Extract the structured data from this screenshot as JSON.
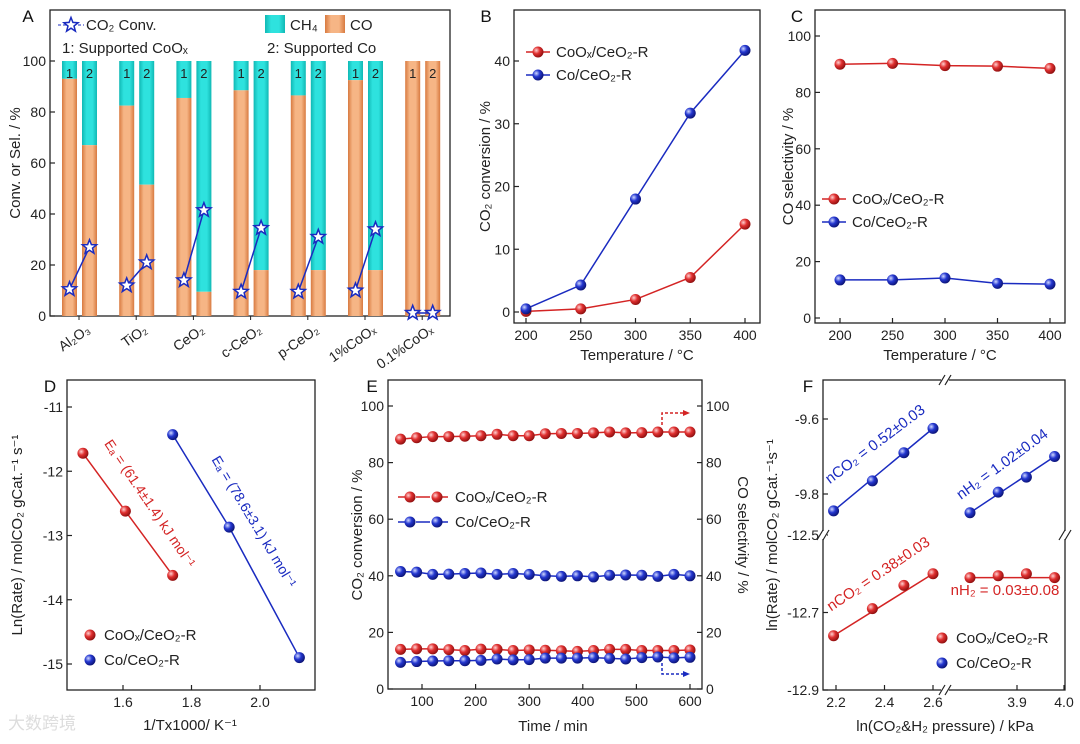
{
  "watermark": "大数跨境",
  "colors": {
    "red": "#d42424",
    "blue": "#1a2bc0",
    "co_bar": "#f2a46e",
    "ch4_bar": "#1ed2cf",
    "axis": "#222222"
  },
  "chart_data": [
    {
      "panel": "A",
      "type": "bar",
      "categories": [
        "Al₂O₃",
        "TiO₂",
        "CeO₂",
        "c-CeO₂",
        "p-CeO₂",
        "1%CoOₓ",
        "0.1%CoOₓ"
      ],
      "bar_labels": [
        "1",
        "2"
      ],
      "ylabel": "Conv. or Sel. / %",
      "ylim": [
        0,
        120
      ],
      "yticks": [
        "0",
        "20",
        "40",
        "60",
        "80",
        "100"
      ],
      "legend": {
        "conv": "CO₂ Conv.",
        "ch4": "CH₄",
        "co": "CO",
        "note1": "1: Supported CoOₓ",
        "note2": "2: Supported Co"
      },
      "co_selectivity": {
        "1": [
          93,
          82.5,
          85.5,
          88.5,
          86.5,
          92.5,
          100
        ],
        "2": [
          67,
          51.5,
          9.5,
          18,
          18,
          18,
          100
        ]
      },
      "co2_conversion": {
        "1": [
          10.5,
          12,
          14,
          9.5,
          9.5,
          10,
          1.2
        ],
        "2": [
          27,
          21,
          41.5,
          34.5,
          31,
          34,
          1.2
        ]
      }
    },
    {
      "panel": "B",
      "type": "line",
      "xlabel": "Temperature / °C",
      "ylabel": "CO₂ conversion / %",
      "xlim": [
        190,
        410
      ],
      "ylim": [
        -1,
        44.8
      ],
      "xticks": [
        "200",
        "250",
        "300",
        "350",
        "400"
      ],
      "yticks": [
        "0",
        "10",
        "20",
        "30",
        "40"
      ],
      "x": [
        200,
        250,
        300,
        350,
        400
      ],
      "series": [
        {
          "name": "CoOₓ/CeO₂-R",
          "color": "#d42424",
          "values": [
            0.1,
            0.5,
            2,
            5.5,
            14
          ]
        },
        {
          "name": "Co/CeO₂-R",
          "color": "#1a2bc0",
          "values": [
            0.5,
            4.3,
            18,
            31.7,
            41.7
          ]
        }
      ]
    },
    {
      "panel": "C",
      "type": "line",
      "xlabel": "Temperature / °C",
      "ylabel": "CO selectivity / %",
      "xlim": [
        190,
        410
      ],
      "ylim": [
        -2,
        109
      ],
      "xticks": [
        "200",
        "250",
        "300",
        "350",
        "400"
      ],
      "yticks": [
        "0",
        "20",
        "40",
        "60",
        "80",
        "100"
      ],
      "x": [
        200,
        250,
        300,
        350,
        400
      ],
      "series": [
        {
          "name": "CoOₓ/CeO₂-R",
          "color": "#d42424",
          "values": [
            90,
            90.3,
            89.5,
            89.3,
            88.5
          ]
        },
        {
          "name": "Co/CeO₂-R",
          "color": "#1a2bc0",
          "values": [
            13.5,
            13.5,
            14.2,
            12.3,
            12
          ]
        }
      ]
    },
    {
      "panel": "D",
      "type": "scatter",
      "xlabel": "1/Tx1000/ K⁻¹",
      "ylabel": "Ln(Rate) / molCO₂ gCat.⁻¹ s⁻¹",
      "xlim": [
        1.43,
        2.15
      ],
      "ylim": [
        -15.4,
        -10.6
      ],
      "xticks": [
        "1.6",
        "1.8",
        "2.0"
      ],
      "yticks": [
        "-11",
        "-12",
        "-13",
        "-14",
        "-15"
      ],
      "series": [
        {
          "name": "CoOₓ/CeO₂-R",
          "color": "#d42424",
          "x": [
            1.483,
            1.607,
            1.745
          ],
          "values": [
            -11.72,
            -12.62,
            -13.62
          ],
          "annotation": "Eₐ = (61.4±1.4) kJ mol⁻¹"
        },
        {
          "name": "Co/CeO₂-R",
          "color": "#1a2bc0",
          "x": [
            1.745,
            1.91,
            2.115
          ],
          "values": [
            -11.43,
            -12.87,
            -14.9
          ],
          "annotation": "Eₐ = (78.6±3.1) kJ mol⁻¹"
        }
      ]
    },
    {
      "panel": "E",
      "type": "line",
      "xlabel": "Time / min",
      "ylabel": "CO₂ conversion / %",
      "ylabel_right": "CO selectivity / %",
      "xlim": [
        45,
        615
      ],
      "ylim": [
        0,
        110
      ],
      "xticks": [
        "100",
        "200",
        "300",
        "400",
        "500",
        "600"
      ],
      "yticks": [
        "0",
        "20",
        "40",
        "60",
        "80",
        "100"
      ],
      "x": [
        60,
        90,
        120,
        150,
        180,
        210,
        240,
        270,
        300,
        330,
        360,
        390,
        420,
        450,
        480,
        510,
        540,
        570,
        600
      ],
      "legend": [
        "CoOₓ/CeO₂-R",
        "Co/CeO₂-R"
      ],
      "series": [
        {
          "name": "CoOₓ/CeO₂-R CO selectivity",
          "axis": "right",
          "color": "#d42424",
          "values": [
            88.3,
            88.8,
            89.2,
            89.2,
            89.3,
            89.5,
            90,
            89.5,
            89.5,
            90.2,
            90.3,
            90.3,
            90.5,
            90.8,
            90.5,
            90.6,
            90.8,
            90.8,
            90.8
          ]
        },
        {
          "name": "Co/CeO₂-R CO selectivity",
          "axis": "right",
          "color": "#1a2bc0",
          "values": [
            41.5,
            41.3,
            40.5,
            40.6,
            40.8,
            41,
            40.5,
            40.8,
            40.5,
            40,
            39.8,
            40,
            39.6,
            40.2,
            40.3,
            40.2,
            39.8,
            40.5,
            40
          ]
        },
        {
          "name": "CoOₓ/CeO₂-R CO₂ conversion",
          "axis": "left",
          "color": "#d42424",
          "values": [
            14,
            14.2,
            14.2,
            13.9,
            13.6,
            14.1,
            14,
            13.6,
            13.8,
            13.7,
            13.5,
            13.3,
            13.6,
            14,
            14,
            13.6,
            13.6,
            13.6,
            13.8
          ]
        },
        {
          "name": "Co/CeO₂-R CO₂ conversion",
          "axis": "left",
          "color": "#1a2bc0",
          "values": [
            9.4,
            9.7,
            9.9,
            10,
            10,
            10.1,
            10.6,
            10.3,
            10.4,
            10.9,
            10.9,
            10.9,
            11.1,
            10.8,
            10.6,
            11.1,
            11.3,
            11,
            11.2
          ]
        }
      ]
    },
    {
      "panel": "F",
      "type": "scatter",
      "xlabel": "ln(CO₂&H₂ pressure) / kPa",
      "ylabel": "ln(Rate) / molCO₂ gCat.⁻¹s⁻¹",
      "xticks_left": [
        "2.2",
        "2.4",
        "2.6"
      ],
      "xticks_right": [
        "3.9",
        "4.0"
      ],
      "yticks_upper": [
        "-9.6",
        "-9.8"
      ],
      "yticks_lower": [
        "-12.5",
        "-12.7",
        "-12.9"
      ],
      "legend": [
        "CoOₓ/CeO₂-R",
        "Co/CeO₂-R"
      ],
      "series": [
        {
          "name": "Co/CeO₂-R vs CO₂",
          "color": "#1a2bc0",
          "x": [
            2.19,
            2.35,
            2.48,
            2.6
          ],
          "values": [
            -9.845,
            -9.765,
            -9.69,
            -9.625
          ],
          "annotation": "nCO₂ = 0.52±0.03"
        },
        {
          "name": "Co/CeO₂-R vs H₂",
          "color": "#1a2bc0",
          "x": [
            3.8,
            3.86,
            3.92,
            3.98
          ],
          "values": [
            -9.85,
            -9.795,
            -9.755,
            -9.7
          ],
          "annotation": "nH₂ = 1.02±0.04"
        },
        {
          "name": "CoOₓ/CeO₂-R vs CO₂",
          "color": "#d42424",
          "x": [
            2.19,
            2.35,
            2.48,
            2.6
          ],
          "values": [
            -12.76,
            -12.69,
            -12.63,
            -12.6
          ],
          "annotation": "nCO₂ = 0.38±0.03"
        },
        {
          "name": "CoOₓ/CeO₂-R vs H₂",
          "color": "#d42424",
          "x": [
            3.8,
            3.86,
            3.92,
            3.98
          ],
          "values": [
            -12.61,
            -12.605,
            -12.6,
            -12.61
          ],
          "annotation": "nH₂ = 0.03±0.08"
        }
      ]
    }
  ]
}
